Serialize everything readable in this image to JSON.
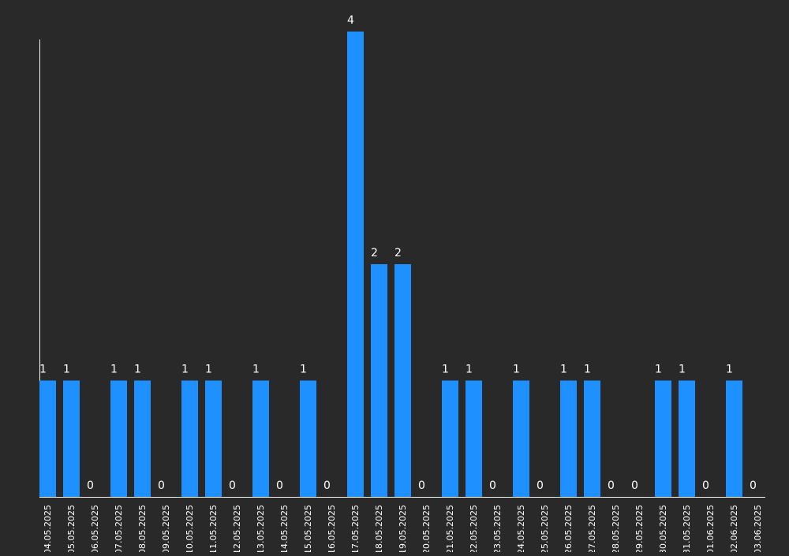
{
  "colors": {
    "background": "#292929",
    "bar": "#1e90ff",
    "axis": "#ffffff",
    "text": "#ffffff"
  },
  "chart_data": {
    "type": "bar",
    "title": "",
    "xlabel": "",
    "ylabel": "",
    "ylim": [
      0,
      4
    ],
    "grid": false,
    "legend": "none",
    "show_data_labels": true,
    "categories": [
      "04.05.2025",
      "05.05.2025",
      "06.05.2025",
      "07.05.2025",
      "08.05.2025",
      "09.05.2025",
      "10.05.2025",
      "11.05.2025",
      "12.05.2025",
      "13.05.2025",
      "14.05.2025",
      "15.05.2025",
      "16.05.2025",
      "17.05.2025",
      "18.05.2025",
      "19.05.2025",
      "20.05.2025",
      "21.05.2025",
      "22.05.2025",
      "23.05.2025",
      "24.05.2025",
      "25.05.2025",
      "26.05.2025",
      "27.05.2025",
      "28.05.2025",
      "29.05.2025",
      "30.05.2025",
      "31.05.2025",
      "01.06.2025",
      "02.06.2025",
      "03.06.2025"
    ],
    "values": [
      1,
      1,
      0,
      1,
      1,
      0,
      1,
      1,
      0,
      1,
      0,
      1,
      0,
      4,
      2,
      2,
      0,
      1,
      1,
      0,
      1,
      0,
      1,
      1,
      0,
      0,
      1,
      1,
      0,
      1,
      0
    ]
  }
}
